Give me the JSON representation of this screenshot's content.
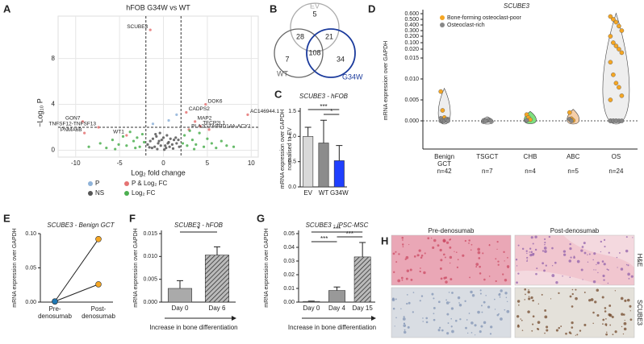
{
  "chart_data": [
    {
      "panel": "A",
      "type": "scatter",
      "title": "hFOB G34W vs WT",
      "xlabel": "Log₂ fold change",
      "ylabel": "−Log₁₀ P",
      "xlim": [
        -12,
        10.8
      ],
      "ylim": [
        -0.6,
        11.7
      ],
      "xticks": [
        -10,
        -5,
        0,
        5,
        10
      ],
      "yticks": [
        0,
        4,
        8
      ],
      "grid": true,
      "fc_thresholds": [
        -2,
        2
      ],
      "p_threshold": 2,
      "series": [
        {
          "name": "P",
          "color": "#8fb3d9",
          "x": [
            -1.2,
            0.6,
            1.5
          ],
          "y": [
            2.3,
            2.6,
            3.1
          ]
        },
        {
          "name": "NS",
          "color": "#555555",
          "x": [
            -1.8,
            -1.5,
            -1.2,
            -1.0,
            -0.8,
            -0.6,
            -0.4,
            -0.2,
            0,
            0.2,
            0.4,
            0.6,
            0.8,
            1.0,
            1.2,
            1.5,
            1.8,
            -1.3,
            -0.7,
            -0.3,
            0.3,
            0.7,
            1.1,
            -0.9,
            0.5,
            0.1,
            -0.5,
            1.4,
            -1.6,
            1.7
          ],
          "y": [
            0.5,
            0.8,
            1.0,
            0.3,
            1.2,
            0.6,
            1.5,
            0.9,
            1.1,
            0.4,
            1.3,
            0.7,
            1.0,
            0.5,
            0.9,
            0.6,
            0.3,
            0.2,
            0.1,
            0.4,
            0.2,
            0.3,
            0.15,
            1.4,
            0.6,
            0.05,
            0.8,
            1.1,
            0.25,
            0.9
          ]
        },
        {
          "name": "P & Log₂ FC",
          "color": "#e57373",
          "x": [
            -1.5,
            4.8,
            2.6,
            3.6,
            4.2,
            2.9,
            5.2,
            9.6,
            -9.2,
            -7.4,
            -9.0,
            -4.2
          ],
          "y": [
            10.5,
            4.0,
            3.3,
            2.5,
            2.1,
            1.8,
            1.8,
            3.1,
            2.5,
            2.0,
            1.5,
            1.3
          ],
          "labels": [
            "SCUBE3",
            "DOK6",
            "CADPS2",
            "MAP2",
            "TFCP2L1",
            "PLA2G3",
            "ABHD14A-ACY1",
            "AC146944.1",
            "GON7",
            "TNFSF12-TNFSF13",
            "PNMA6B",
            "WT1"
          ]
        },
        {
          "name": "Log₂ FC",
          "color": "#4caf50",
          "x": [
            -8.5,
            -7.2,
            -6.5,
            -5.8,
            -5.1,
            -4.6,
            -4.2,
            -3.8,
            -3.4,
            -3.0,
            -2.7,
            -2.4,
            -2.2,
            2.2,
            2.4,
            2.7,
            3.0,
            3.3,
            3.7,
            4.1,
            4.6,
            5.0,
            5.5,
            6.0,
            6.6,
            7.2,
            8.0,
            -3.2,
            3.5,
            -5.5
          ],
          "y": [
            0.3,
            0.6,
            0.2,
            0.9,
            0.5,
            1.2,
            0.4,
            1.6,
            0.8,
            1.1,
            0.3,
            1.4,
            0.7,
            0.6,
            1.3,
            0.4,
            1.7,
            0.9,
            0.5,
            1.5,
            0.3,
            1.0,
            0.6,
            0.2,
            0.8,
            0.4,
            0.3,
            0.2,
            0.1,
            0.1
          ]
        }
      ]
    },
    {
      "panel": "B",
      "type": "venn",
      "sets": [
        {
          "name": "EV",
          "color": "#aaaaaa"
        },
        {
          "name": "WT",
          "color": "#666666"
        },
        {
          "name": "G34W",
          "color": "#1a3a9c"
        }
      ],
      "regions": [
        {
          "sets": [
            "EV"
          ],
          "value": 5
        },
        {
          "sets": [
            "EV",
            "WT"
          ],
          "value": 28
        },
        {
          "sets": [
            "EV",
            "G34W"
          ],
          "value": 21
        },
        {
          "sets": [
            "WT"
          ],
          "value": 7
        },
        {
          "sets": [
            "EV",
            "WT",
            "G34W"
          ],
          "value": 108
        },
        {
          "sets": [
            "G34W"
          ],
          "value": 34
        }
      ]
    },
    {
      "panel": "C",
      "type": "bar",
      "title": "SCUBE3 - hFOB",
      "ylabel": [
        "mRNA expression over GAPDH",
        "normalised to EV"
      ],
      "categories": [
        "EV",
        "WT",
        "G34W"
      ],
      "values": [
        1.0,
        0.87,
        0.52
      ],
      "errors": [
        0.18,
        0.45,
        0.3
      ],
      "colors": [
        "#d9d9d9",
        "#8c8c8c",
        "#1f3fff"
      ],
      "hatched": [
        false,
        false,
        false
      ],
      "ylim": [
        0,
        1.5
      ],
      "yticks": [
        {
          "value": 0,
          "label": "0.0"
        },
        {
          "value": 0.5,
          "label": "0.5"
        },
        {
          "value": 1,
          "label": "1.0"
        },
        {
          "value": 1.5,
          "label": "1.5"
        }
      ],
      "significance": [
        {
          "from": 1,
          "to": 2,
          "label": "*"
        },
        {
          "from": 0,
          "to": 2,
          "label": "***"
        }
      ]
    },
    {
      "panel": "D",
      "type": "violin",
      "title": "SCUBE3",
      "ylabel": "mRNA expression over GAPDH",
      "categories": [
        [
          "Benign",
          "GCT"
        ],
        [
          "TSGCT"
        ],
        [
          "CHB"
        ],
        [
          "ABC"
        ],
        [
          "OS"
        ]
      ],
      "category_notes": [
        "n=42",
        "n=7",
        "n=4",
        "n=5",
        "n=24"
      ],
      "violin_colors": [
        "#eeeeee",
        "#eeeeee",
        "#7ee07e",
        "#f6cfa8",
        "#eeeeee"
      ],
      "yticks": [
        {
          "value": 0,
          "label": "0.000"
        },
        {
          "value": 0.005,
          "label": "0.005"
        },
        {
          "value": 0.01,
          "label": "0.010"
        },
        {
          "value": 0.015,
          "label": "0.015"
        },
        {
          "value": 0.02,
          "label": "0.020"
        },
        {
          "value": 0.1,
          "label": "0.100"
        },
        {
          "value": 0.2,
          "label": "0.200"
        },
        {
          "value": 0.3,
          "label": "0.300"
        },
        {
          "value": 0.4,
          "label": "0.400"
        },
        {
          "value": 0.5,
          "label": "0.500"
        },
        {
          "value": 0.6,
          "label": "0.600"
        }
      ],
      "series": [
        {
          "name": "Bone-forming osteoclast-poor",
          "color": "#f5a623",
          "values": [
            [
              0.007,
              0.0025,
              0.0008,
              0.0003
            ],
            [],
            [
              0.0015,
              0.0008,
              0.0003
            ],
            [
              0.002,
              0.0005,
              0.0001
            ],
            [
              0.55,
              0.5,
              0.45,
              0.38,
              0.3,
              0.2,
              0.1,
              0.06,
              0.02,
              0.018,
              0.014,
              0.011,
              0.009,
              0.008,
              0.006,
              0.005
            ]
          ]
        },
        {
          "name": "Osteoclast-rich",
          "color": "#888888",
          "values": [
            [
              0,
              0,
              0,
              0.0002,
              0.0004,
              0.0006,
              0.0001,
              0,
              0.0003,
              0
            ],
            [
              0,
              0,
              0.0001,
              0.0002,
              0,
              0.0001,
              0
            ],
            [
              0.0001
            ],
            [
              0.0004,
              0
            ],
            [
              0,
              0,
              0,
              0,
              0,
              0,
              0,
              0
            ]
          ]
        }
      ]
    },
    {
      "panel": "E",
      "type": "pairs",
      "title": "SCUBE3 - Benign GCT",
      "ylabel": "mRNA expression over GAPDH",
      "categories": [
        [
          "Pre-",
          "denosumab"
        ],
        [
          "Post-",
          "denosumab"
        ]
      ],
      "point_colors": [
        "#1f78b4",
        "#f5a623"
      ],
      "ylim": [
        0,
        0.1
      ],
      "yticks": [
        {
          "value": 0,
          "label": "0.00"
        },
        {
          "value": 0.05,
          "label": "0.05"
        },
        {
          "value": 0.1,
          "label": "0.10"
        }
      ],
      "series": [
        {
          "values": [
            0.001,
            0.092
          ]
        },
        {
          "values": [
            0.001,
            0.026
          ]
        }
      ]
    },
    {
      "panel": "F",
      "type": "bar",
      "title": "SCUBE3 - hFOB",
      "ylabel": "mRNA expression over GAPDH",
      "xlabel": "Increase in bone differentiation",
      "categories": [
        "Day 0",
        "Day 6"
      ],
      "values": [
        0.003,
        0.0103
      ],
      "errors": [
        0.0017,
        0.0018
      ],
      "colors": [
        "#aaaaaa",
        "#888888"
      ],
      "hatched": [
        false,
        true
      ],
      "ylim": [
        0,
        0.015
      ],
      "yticks": [
        {
          "value": 0,
          "label": "0.000"
        },
        {
          "value": 0.005,
          "label": "0.005"
        },
        {
          "value": 0.01,
          "label": "0.010"
        },
        {
          "value": 0.015,
          "label": "0.015"
        }
      ],
      "significance": [
        {
          "from": 0,
          "to": 1,
          "label": "*"
        }
      ]
    },
    {
      "panel": "G",
      "type": "bar",
      "title": "SCUBE3 - iPSC-MSC",
      "ylabel": "mRNA expression over GAPDH",
      "xlabel": "Increase in bone differentiation",
      "categories": [
        "Day 0",
        "Day 4",
        "Day 15"
      ],
      "values": [
        0.0005,
        0.0085,
        0.033
      ],
      "errors": [
        0.0002,
        0.0025,
        0.0105
      ],
      "colors": [
        "#aaaaaa",
        "#999999",
        "#888888"
      ],
      "hatched": [
        false,
        false,
        true
      ],
      "ylim": [
        0,
        0.05
      ],
      "yticks": [
        {
          "value": 0,
          "label": "0.00"
        },
        {
          "value": 0.01,
          "label": "0.01"
        },
        {
          "value": 0.02,
          "label": "0.02"
        },
        {
          "value": 0.03,
          "label": "0.03"
        },
        {
          "value": 0.04,
          "label": "0.04"
        },
        {
          "value": 0.05,
          "label": "0.05"
        }
      ],
      "significance": [
        {
          "from": 0,
          "to": 1,
          "label": "***"
        },
        {
          "from": 1,
          "to": 2,
          "label": "***"
        },
        {
          "from": 0,
          "to": 2,
          "label": "***"
        }
      ]
    },
    {
      "panel": "H",
      "type": "image_grid",
      "columns": [
        "Pre-denosumab",
        "Post-denosumab"
      ],
      "rows": [
        "H&E",
        "SCUBE3"
      ]
    }
  ]
}
